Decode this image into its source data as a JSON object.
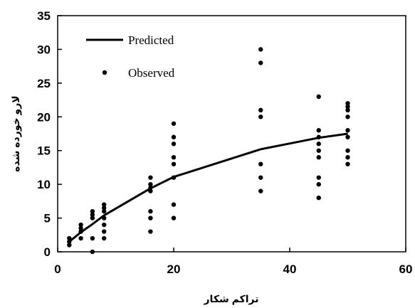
{
  "chart_data": {
    "type": "scatter",
    "xlabel": "تراکم شکار",
    "ylabel": "لارو خورده شده",
    "xlim": [
      0,
      60
    ],
    "ylim": [
      0,
      35
    ],
    "xticks": [
      0,
      20,
      40,
      60
    ],
    "yticks": [
      0,
      5,
      10,
      15,
      20,
      25,
      30,
      35
    ],
    "xtick_labels": [
      "0",
      "20",
      "40",
      "60"
    ],
    "ytick_labels": [
      "0",
      "5",
      "10",
      "15",
      "20",
      "25",
      "30",
      "35"
    ],
    "grid": false,
    "legend_position": "top-left",
    "series": [
      {
        "name": "Predicted",
        "kind": "line",
        "color": "#000000",
        "x": [
          2,
          4,
          6,
          8,
          16,
          20,
          35,
          45,
          50
        ],
        "y": [
          1.5,
          2.9,
          4.1,
          5.4,
          9.4,
          11.1,
          15.2,
          16.9,
          17.5
        ]
      },
      {
        "name": "Observed",
        "kind": "scatter",
        "color": "#000000",
        "x": [
          2,
          2,
          2,
          4,
          4,
          4,
          4,
          6,
          6,
          6,
          6,
          6,
          8,
          8,
          8,
          8,
          8,
          8,
          8,
          16,
          16,
          16,
          16,
          16,
          16,
          16,
          20,
          20,
          20,
          20,
          20,
          20,
          20,
          20,
          35,
          35,
          35,
          35,
          35,
          35,
          35,
          45,
          45,
          45,
          45,
          45,
          45,
          45,
          45,
          45,
          50,
          50,
          50,
          50,
          50,
          50,
          50,
          50,
          50
        ],
        "y": [
          1,
          1.5,
          2,
          2,
          3,
          3.5,
          4,
          0,
          2,
          5,
          5.5,
          6,
          2,
          3,
          4,
          5,
          6,
          6.5,
          7,
          3,
          5,
          6,
          9,
          9.5,
          10,
          11,
          5,
          7,
          11,
          13,
          14,
          16,
          17,
          19,
          9,
          11,
          13,
          20,
          21,
          28,
          30,
          8,
          10,
          11,
          14,
          15,
          16,
          17,
          18,
          23,
          13,
          14,
          15,
          17,
          18,
          20,
          21,
          21.5,
          22
        ]
      }
    ]
  }
}
